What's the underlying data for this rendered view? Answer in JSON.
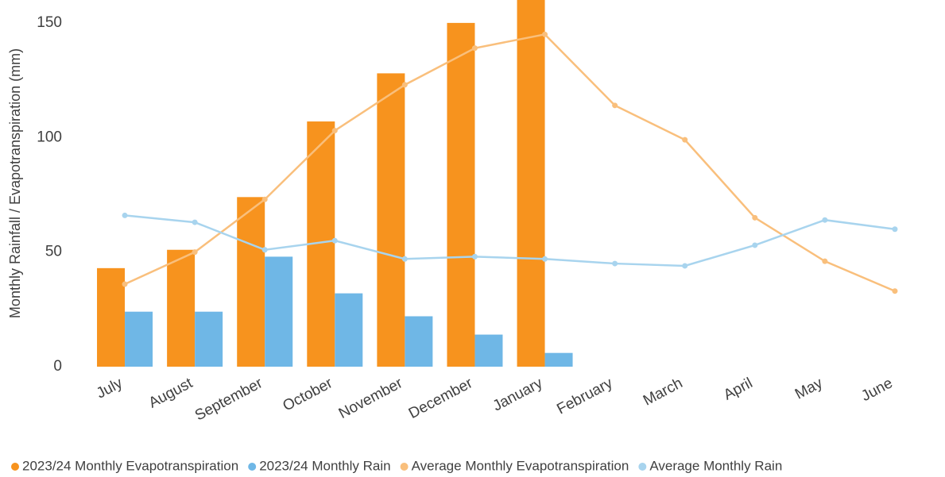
{
  "chart_data": {
    "type": "bar_line",
    "y_label": "Monthly Rainfall / Evapotranspiration (mm)",
    "categories": [
      "July",
      "August",
      "September",
      "October",
      "November",
      "December",
      "January",
      "February",
      "March",
      "April",
      "May",
      "June"
    ],
    "series": [
      {
        "name": "2023/24 Monthly Evapotranspiration",
        "color": "#f7931e",
        "type": "bar",
        "values": [
          43,
          51,
          74,
          107,
          128,
          150,
          160,
          null,
          null,
          null,
          null,
          null
        ]
      },
      {
        "name": "2023/24 Monthly Rain",
        "color": "#6fb7e6",
        "type": "bar",
        "values": [
          24,
          24,
          48,
          32,
          22,
          14,
          6,
          null,
          null,
          null,
          null,
          null
        ]
      },
      {
        "name": "Average Monthly Evapotranspiration",
        "color": "#f9bf7c",
        "type": "line",
        "values": [
          36,
          50,
          73,
          103,
          123,
          139,
          145,
          114,
          99,
          65,
          46,
          33
        ]
      },
      {
        "name": "Average Monthly Rain",
        "color": "#a8d4ee",
        "type": "line",
        "values": [
          66,
          63,
          51,
          55,
          47,
          48,
          47,
          45,
          44,
          53,
          64,
          60
        ]
      }
    ],
    "ylim": [
      0,
      160
    ],
    "yticks": [
      0,
      50,
      100,
      150
    ],
    "grid": false,
    "legend": "bottom"
  }
}
